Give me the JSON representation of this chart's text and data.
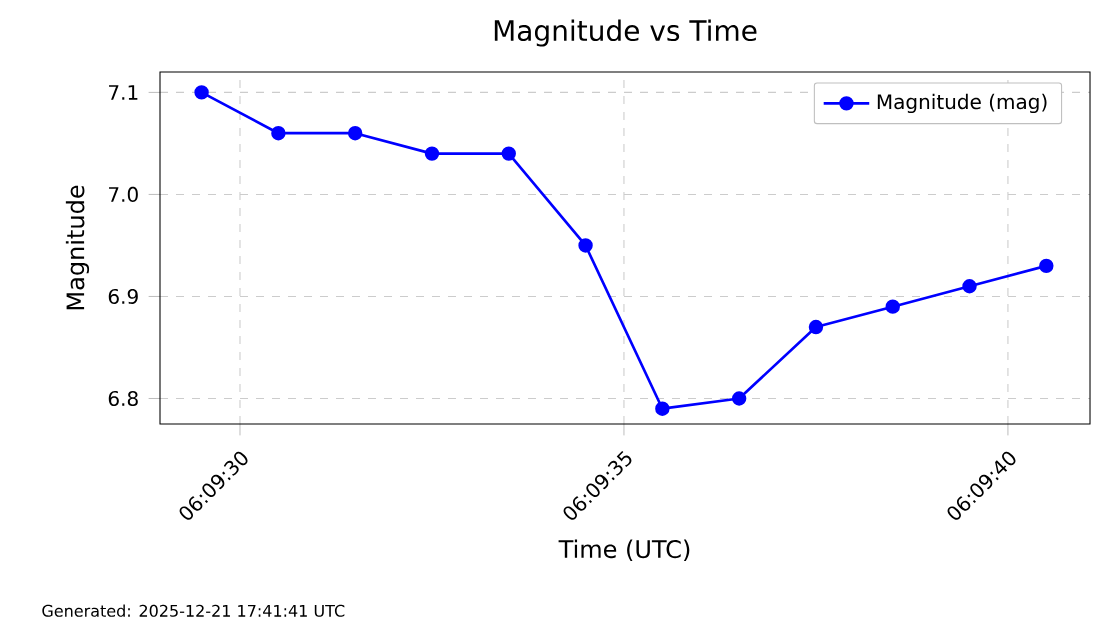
{
  "chart_data": {
    "type": "line",
    "title": "Magnitude vs Time",
    "xlabel": "Time (UTC)",
    "ylabel": "Magnitude",
    "annotations": [
      "Generated: 2025-12-21 17:41:41 UTC"
    ],
    "x": [
      6.15819444,
      6.15847222,
      6.15875,
      6.15902778,
      6.15930556,
      6.15958333,
      6.15986111,
      6.16013889,
      6.16041667,
      6.16069444,
      6.16097222,
      6.16125
    ],
    "series": [
      {
        "name": "Magnitude (mag)",
        "color": "#0000ff",
        "values": [
          7.1,
          7.06,
          7.06,
          7.04,
          7.04,
          6.95,
          6.79,
          6.8,
          6.87,
          6.89,
          6.91,
          6.93
        ]
      }
    ],
    "xlim": [
      6.158044,
      6.161408
    ],
    "ylim": [
      6.775,
      7.12
    ],
    "xticks": [
      {
        "value": 6.15833333,
        "label": "06:09:30"
      },
      {
        "value": 6.15972222,
        "label": "06:09:35"
      },
      {
        "value": 6.16111111,
        "label": "06:09:40"
      }
    ],
    "yticks": [
      6.8,
      6.9,
      {
        "value": 7.0,
        "label": "7.0"
      },
      7.1
    ],
    "grid": true,
    "legend": "top right",
    "marker": "circle",
    "line_style": "solid"
  }
}
